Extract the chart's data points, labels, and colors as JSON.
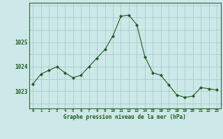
{
  "x": [
    0,
    1,
    2,
    3,
    4,
    5,
    6,
    7,
    8,
    9,
    10,
    11,
    12,
    13,
    14,
    15,
    16,
    17,
    18,
    19,
    20,
    21,
    22,
    23
  ],
  "y": [
    1023.3,
    1023.7,
    1023.85,
    1024.0,
    1023.75,
    1023.55,
    1023.65,
    1024.0,
    1024.35,
    1024.7,
    1025.25,
    1026.05,
    1026.1,
    1025.7,
    1024.4,
    1023.75,
    1023.65,
    1023.25,
    1022.85,
    1022.75,
    1022.8,
    1023.15,
    1023.1,
    1023.05
  ],
  "line_color": "#1a5e1a",
  "marker_color": "#1a5e1a",
  "bg_color": "#cce8e8",
  "grid_color": "#aacccc",
  "axis_color": "#336633",
  "xlabel": "Graphe pression niveau de la mer (hPa)",
  "xlabel_color": "#1a5e1a",
  "tick_color": "#1a5e1a",
  "ytick_labels": [
    "1023",
    "1024",
    "1025"
  ],
  "ytick_values": [
    1023,
    1024,
    1025
  ],
  "ylim": [
    1022.3,
    1026.6
  ],
  "xlim": [
    -0.5,
    23.5
  ],
  "figsize": [
    3.2,
    2.0
  ],
  "dpi": 100
}
